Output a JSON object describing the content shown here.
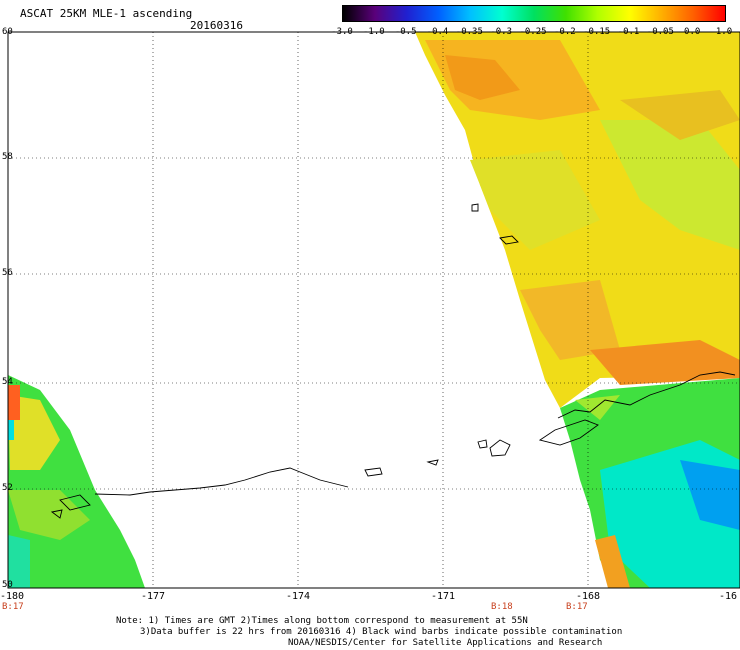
{
  "title": "ASCAT 25KM MLE-1 ascending",
  "date": "20160316",
  "colorbar": {
    "labels": [
      "-3.0",
      "-1.0",
      "-0.5",
      "-0.4",
      "-0.35",
      "-0.3",
      "-0.25",
      "-0.2",
      "-0.15",
      "-0.1",
      "-0.05",
      "0.0",
      "1.0"
    ],
    "colors": [
      "#000000",
      "#5a007a",
      "#2020d0",
      "#0060ff",
      "#00c0ff",
      "#00ffd0",
      "#00e060",
      "#40e000",
      "#b0ff00",
      "#ffff00",
      "#ffb000",
      "#ff6000",
      "#ff0000"
    ]
  },
  "lat_labels": [
    "60",
    "58",
    "56",
    "54",
    "52",
    "50"
  ],
  "lon_labels": [
    "-180",
    "-177",
    "-174",
    "-171",
    "-168",
    "-16"
  ],
  "time_labels": [
    "B:17",
    "B:18",
    "B:17"
  ],
  "notes": {
    "line1": "Note: 1) Times are GMT 2)Times along bottom correspond to measurement at 55N",
    "line2": "3)Data buffer is 22 hrs from 20160316 4) Black wind barbs indicate possible contamination",
    "line3": "NOAA/NESDIS/Center for Satellite Applications and Research"
  }
}
